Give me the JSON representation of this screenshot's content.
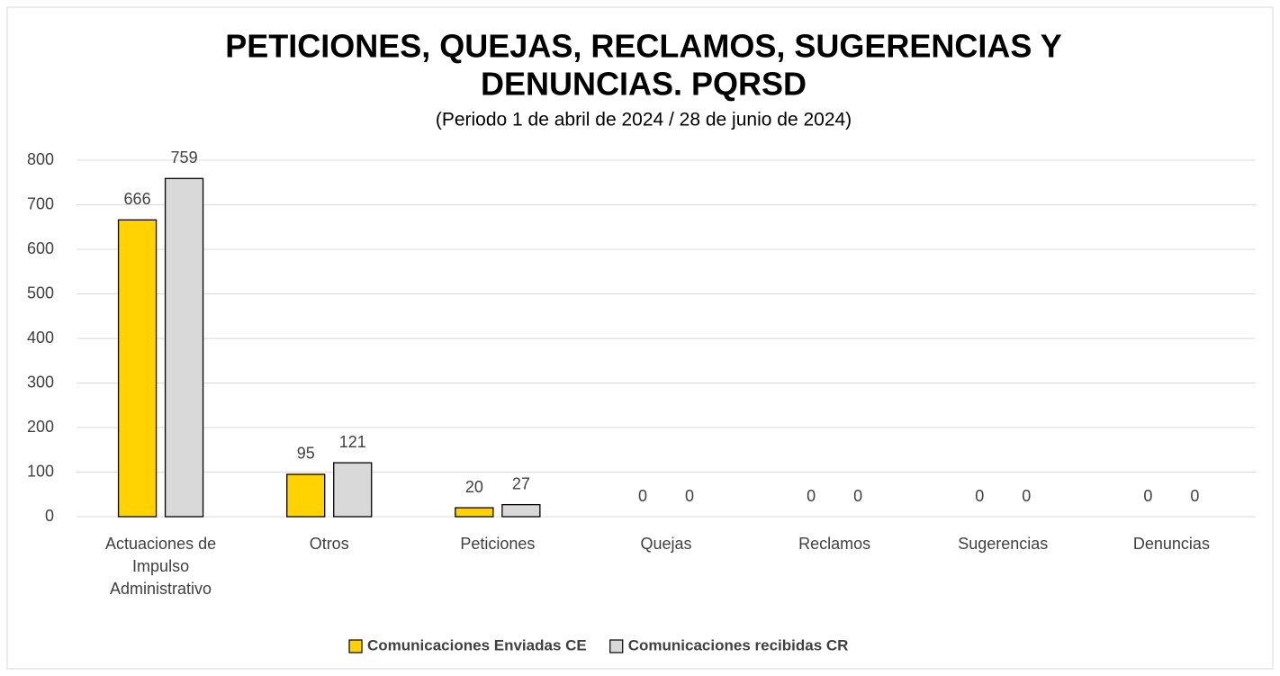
{
  "chart_data": {
    "type": "bar",
    "title": [
      "PETICIONES, QUEJAS, RECLAMOS, SUGERENCIAS Y",
      "DENUNCIAS. PQRSD"
    ],
    "subtitle": "(Periodo 1 de abril de 2024 / 28 de junio de 2024)",
    "categories": [
      "Actuaciones de Impulso Administrativo",
      "Otros",
      "Peticiones",
      "Quejas",
      "Reclamos",
      "Sugerencias",
      "Denuncias"
    ],
    "series": [
      {
        "name": "Comunicaciones Enviadas CE",
        "color": "#FFD200",
        "values": [
          666,
          95,
          20,
          0,
          0,
          0,
          0
        ]
      },
      {
        "name": "Comunicaciones recibidas CR",
        "color": "#D9D9D9",
        "values": [
          759,
          121,
          27,
          0,
          0,
          0,
          0
        ]
      }
    ],
    "ylim": [
      0,
      800
    ],
    "yticks": [
      0,
      100,
      200,
      300,
      400,
      500,
      600,
      700,
      800
    ],
    "grid": true,
    "legend": "bottom"
  }
}
